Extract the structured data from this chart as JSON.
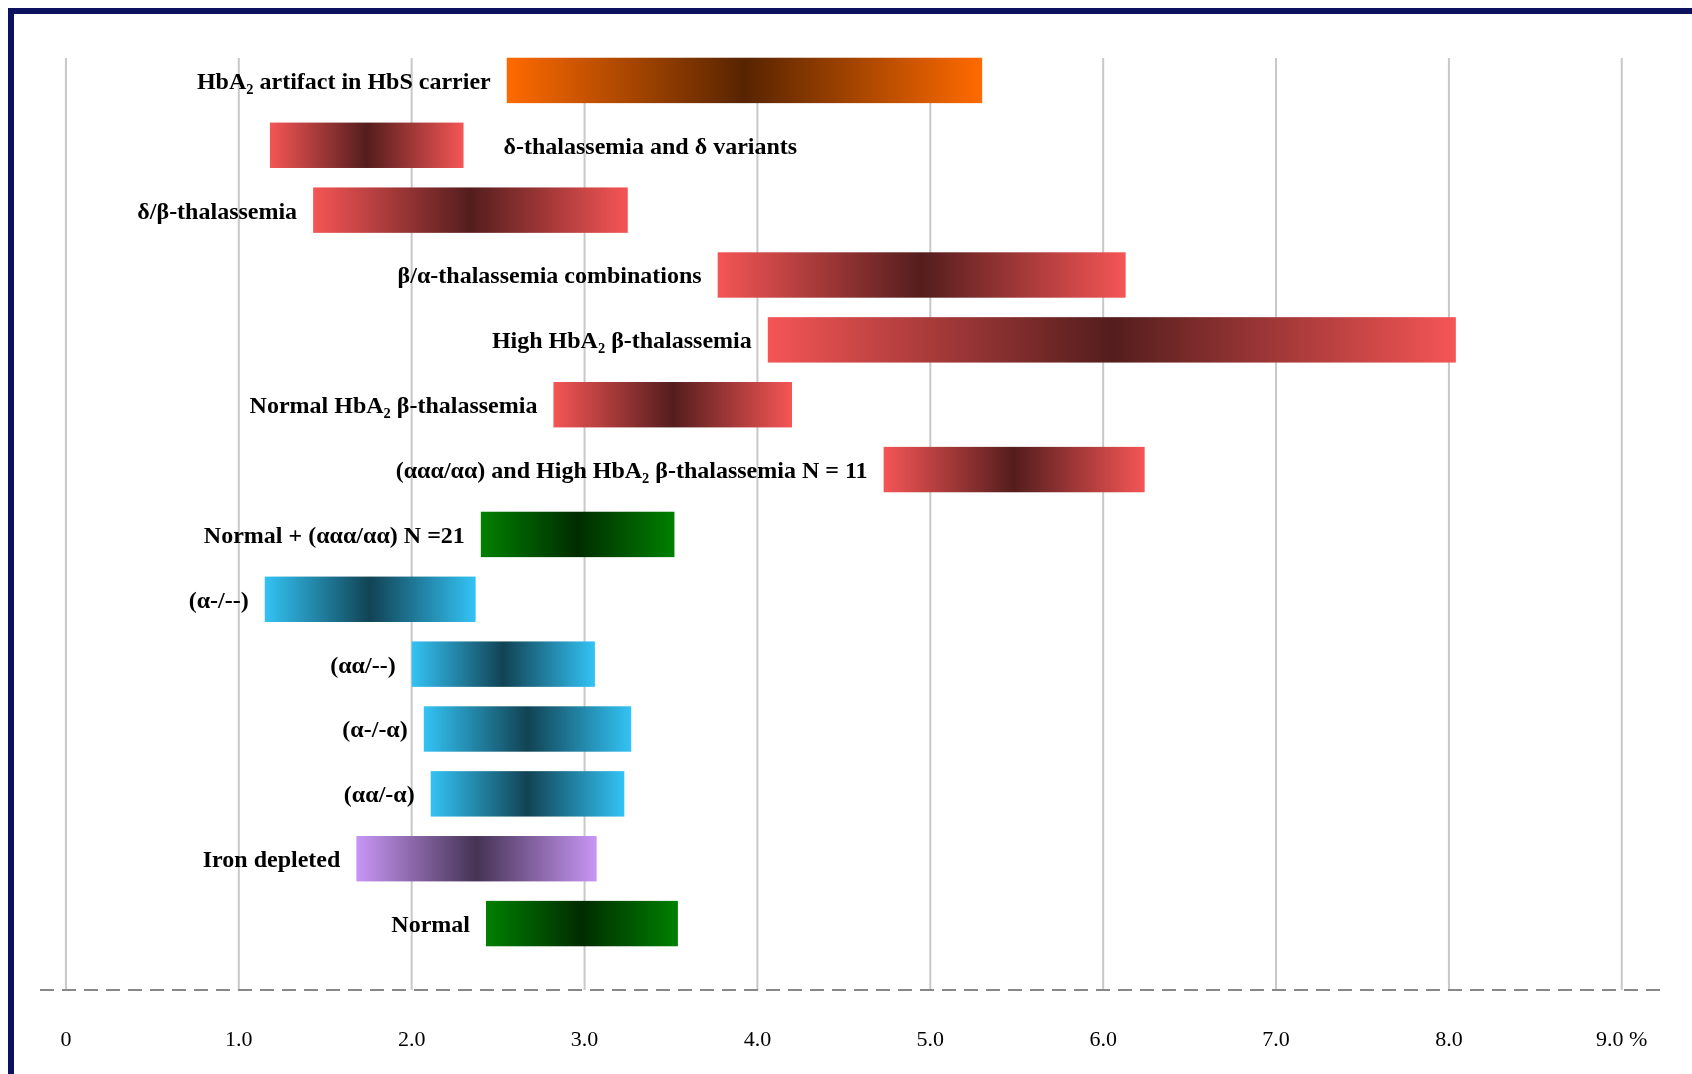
{
  "chart_data": {
    "type": "bar",
    "orientation": "horizontal",
    "categories": [
      "HbA₂ artifact in HbS carrier",
      "δ-thalassemia and δ variants",
      "δ/β-thalassemia",
      "β/α-thalassemia combinations",
      "High HbA₂ β-thalassemia",
      "Normal HbA₂ β-thalassemia",
      "(ααα/αα)  and High HbA₂ β-thalassemia N = 11",
      "Normal + (ααα/αα) N =21",
      "(α-/--)",
      "(αα/--)",
      "(α-/-α)",
      "(αα/-α)",
      "Iron depleted",
      "Normal"
    ],
    "base": [
      2.55,
      1.18,
      1.43,
      3.77,
      4.06,
      2.82,
      4.73,
      2.4,
      1.15,
      2.0,
      2.07,
      2.11,
      1.68,
      2.43
    ],
    "values": [
      2.75,
      1.12,
      1.82,
      2.36,
      3.98,
      1.38,
      1.51,
      1.12,
      1.22,
      1.06,
      1.2,
      1.12,
      1.39,
      1.11
    ],
    "colors": [
      "#ff6a00",
      "#f55555",
      "#f55555",
      "#f55555",
      "#f55555",
      "#f55555",
      "#f55555",
      "#008000",
      "#33c3f5",
      "#33c3f5",
      "#33c3f5",
      "#33c3f5",
      "#c896f5",
      "#008000"
    ],
    "xlim": [
      -0.15,
      9.25
    ],
    "xticks": [
      0,
      {
        "value": 1,
        "label": "1.0"
      },
      {
        "value": 2,
        "label": "2.0"
      },
      {
        "value": 3,
        "label": "3.0"
      },
      {
        "value": 4,
        "label": "4.0"
      },
      {
        "value": 5,
        "label": "5.0"
      },
      {
        "value": 6,
        "label": "6.0"
      },
      {
        "value": 7,
        "label": "7.0"
      },
      {
        "value": 8,
        "label": "8.0"
      },
      {
        "value": 9,
        "label": "9.0 %"
      }
    ],
    "grid": "x"
  }
}
